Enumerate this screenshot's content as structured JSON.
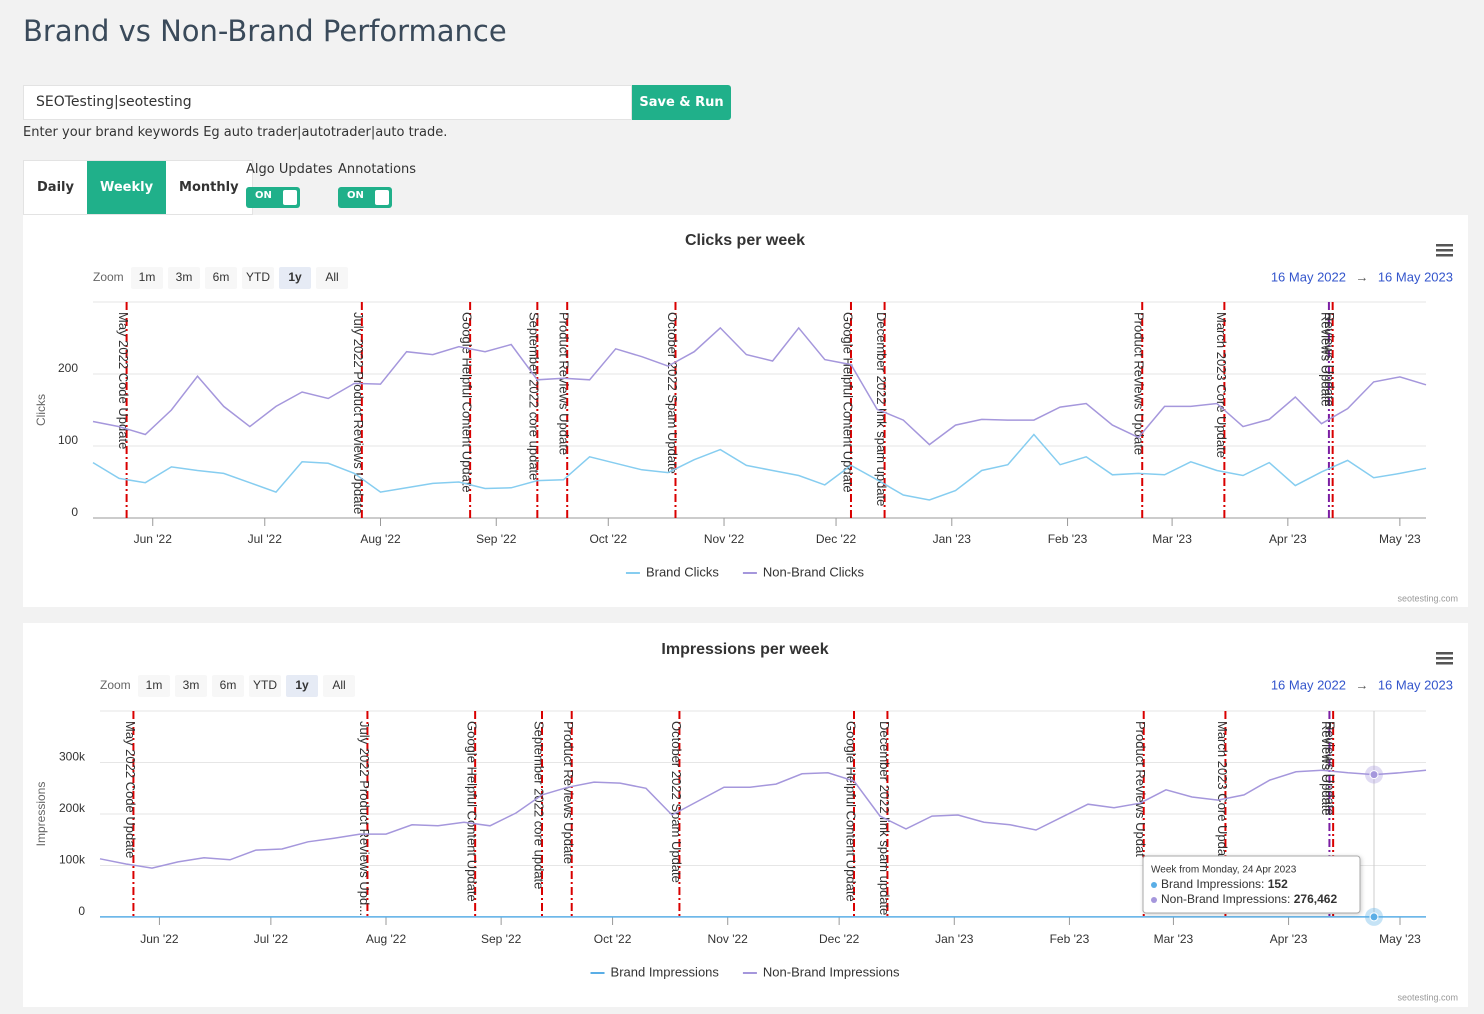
{
  "header": {
    "title": "Brand vs Non-Brand Performance"
  },
  "brand_form": {
    "input_value": "SEOTesting|seotesting",
    "button": "Save & Run",
    "help": "Enter your brand keywords Eg auto trader|autotrader|auto trade."
  },
  "tabs": [
    {
      "label": "Daily"
    },
    {
      "label": "Weekly",
      "selected": true
    },
    {
      "label": "Monthly"
    }
  ],
  "toggles": [
    {
      "label": "Algo Updates",
      "state": "ON"
    },
    {
      "label": "Annotations",
      "state": "ON"
    }
  ],
  "chart_data": [
    {
      "type": "line",
      "title": "Clicks per week",
      "y_label": "Clicks",
      "zoom": {
        "label": "Zoom",
        "buttons": [
          {
            "label": "1m"
          },
          {
            "label": "3m"
          },
          {
            "label": "6m"
          },
          {
            "label": "YTD"
          },
          {
            "label": "1y",
            "selected": true
          },
          {
            "label": "All"
          }
        ]
      },
      "range": {
        "from": "16 May 2022",
        "arrow": "→",
        "to": "16 May 2023"
      },
      "x": [
        "2022-05-16",
        "2022-05-23",
        "2022-05-30",
        "2022-06-06",
        "2022-06-13",
        "2022-06-20",
        "2022-06-27",
        "2022-07-04",
        "2022-07-11",
        "2022-07-18",
        "2022-07-25",
        "2022-08-01",
        "2022-08-08",
        "2022-08-15",
        "2022-08-22",
        "2022-08-29",
        "2022-09-05",
        "2022-09-12",
        "2022-09-19",
        "2022-09-26",
        "2022-10-03",
        "2022-10-10",
        "2022-10-17",
        "2022-10-24",
        "2022-10-31",
        "2022-11-07",
        "2022-11-14",
        "2022-11-21",
        "2022-11-28",
        "2022-12-05",
        "2022-12-12",
        "2022-12-19",
        "2022-12-26",
        "2023-01-02",
        "2023-01-09",
        "2023-01-16",
        "2023-01-23",
        "2023-01-30",
        "2023-02-06",
        "2023-02-13",
        "2023-02-20",
        "2023-02-27",
        "2023-03-06",
        "2023-03-13",
        "2023-03-20",
        "2023-03-27",
        "2023-04-03",
        "2023-04-10",
        "2023-04-17",
        "2023-04-24",
        "2023-05-01",
        "2023-05-08"
      ],
      "xlim": [
        "2022-05-16",
        "2023-05-08"
      ],
      "xticks": [
        {
          "value": "2022-06-01",
          "label": "Jun '22"
        },
        {
          "value": "2022-07-01",
          "label": "Jul '22"
        },
        {
          "value": "2022-08-01",
          "label": "Aug '22"
        },
        {
          "value": "2022-09-01",
          "label": "Sep '22"
        },
        {
          "value": "2022-10-01",
          "label": "Oct '22"
        },
        {
          "value": "2022-11-01",
          "label": "Nov '22"
        },
        {
          "value": "2022-12-01",
          "label": "Dec '22"
        },
        {
          "value": "2023-01-01",
          "label": "Jan '23"
        },
        {
          "value": "2023-02-01",
          "label": "Feb '23"
        },
        {
          "value": "2023-03-01",
          "label": "Mar '23"
        },
        {
          "value": "2023-04-01",
          "label": "Apr '23"
        },
        {
          "value": "2023-05-01",
          "label": "May '23"
        }
      ],
      "ylim": [
        0,
        300
      ],
      "yticks": [
        0,
        100,
        200
      ],
      "grid": true,
      "series": [
        {
          "name": "Brand Clicks",
          "color": "#86cdf0",
          "values": [
            77,
            55,
            49,
            71,
            66,
            62,
            49,
            36,
            78,
            76,
            62,
            36,
            42,
            48,
            50,
            41,
            42,
            52,
            53,
            85,
            76,
            67,
            63,
            81,
            95,
            73,
            66,
            59,
            46,
            73,
            53,
            32,
            25,
            38,
            66,
            74,
            116,
            74,
            85,
            60,
            62,
            60,
            78,
            66,
            59,
            77,
            45,
            64,
            80,
            56,
            62,
            69
          ]
        },
        {
          "name": "Non-Brand Clicks",
          "color": "#a597dc",
          "values": [
            134,
            127,
            116,
            150,
            197,
            155,
            127,
            155,
            175,
            166,
            187,
            186,
            231,
            227,
            238,
            231,
            241,
            192,
            194,
            192,
            235,
            224,
            211,
            231,
            264,
            227,
            218,
            264,
            220,
            213,
            151,
            136,
            102,
            129,
            137,
            136,
            136,
            154,
            159,
            129,
            112,
            155,
            155,
            159,
            127,
            137,
            168,
            131,
            152,
            189,
            196,
            185
          ]
        }
      ],
      "annotations": [
        {
          "x": "2022-05-25",
          "label": "May 2022 Code Update",
          "color": "#d90000"
        },
        {
          "x": "2022-07-27",
          "label": "July 2022 Product Reviews Update",
          "color": "#d90000"
        },
        {
          "x": "2022-08-25",
          "label": "Google Helpful Content Update",
          "color": "#d90000"
        },
        {
          "x": "2022-09-12",
          "label": "September 2022 core update",
          "color": "#d90000"
        },
        {
          "x": "2022-09-20",
          "label": "Product Reviews Update",
          "color": "#d90000"
        },
        {
          "x": "2022-10-19",
          "label": "October 2022 Spam Update",
          "color": "#d90000"
        },
        {
          "x": "2022-12-05",
          "label": "Google Helpful Content Update",
          "color": "#d90000"
        },
        {
          "x": "2022-12-14",
          "label": "December 2022 link spam update",
          "color": "#d90000"
        },
        {
          "x": "2023-02-21",
          "label": "Product Reviews Update",
          "color": "#d90000"
        },
        {
          "x": "2023-03-15",
          "label": "March 2023 Core Update",
          "color": "#d90000"
        },
        {
          "x": "2023-04-12",
          "label": "Reviews Update",
          "color": "#7b1fa2"
        },
        {
          "x": "2023-04-13",
          "label": "Reviews Update",
          "color": "#d90000"
        }
      ],
      "credits": "seotesting.com"
    },
    {
      "type": "line",
      "title": "Impressions per week",
      "y_label": "Impressions",
      "zoom": {
        "label": "Zoom",
        "buttons": [
          {
            "label": "1m"
          },
          {
            "label": "3m"
          },
          {
            "label": "6m"
          },
          {
            "label": "YTD"
          },
          {
            "label": "1y",
            "selected": true
          },
          {
            "label": "All"
          }
        ]
      },
      "range": {
        "from": "16 May 2022",
        "arrow": "→",
        "to": "16 May 2023"
      },
      "x": [
        "2022-05-16",
        "2022-05-23",
        "2022-05-30",
        "2022-06-06",
        "2022-06-13",
        "2022-06-20",
        "2022-06-27",
        "2022-07-04",
        "2022-07-11",
        "2022-07-18",
        "2022-07-25",
        "2022-08-01",
        "2022-08-08",
        "2022-08-15",
        "2022-08-22",
        "2022-08-29",
        "2022-09-05",
        "2022-09-12",
        "2022-09-19",
        "2022-09-26",
        "2022-10-03",
        "2022-10-10",
        "2022-10-17",
        "2022-10-24",
        "2022-10-31",
        "2022-11-07",
        "2022-11-14",
        "2022-11-21",
        "2022-11-28",
        "2022-12-05",
        "2022-12-12",
        "2022-12-19",
        "2022-12-26",
        "2023-01-02",
        "2023-01-09",
        "2023-01-16",
        "2023-01-23",
        "2023-01-30",
        "2023-02-06",
        "2023-02-13",
        "2023-02-20",
        "2023-02-27",
        "2023-03-06",
        "2023-03-13",
        "2023-03-20",
        "2023-03-27",
        "2023-04-03",
        "2023-04-10",
        "2023-04-17",
        "2023-04-24",
        "2023-05-01",
        "2023-05-08"
      ],
      "xlim": [
        "2022-05-16",
        "2023-05-08"
      ],
      "xticks": [
        {
          "value": "2022-06-01",
          "label": "Jun '22"
        },
        {
          "value": "2022-07-01",
          "label": "Jul '22"
        },
        {
          "value": "2022-08-01",
          "label": "Aug '22"
        },
        {
          "value": "2022-09-01",
          "label": "Sep '22"
        },
        {
          "value": "2022-10-01",
          "label": "Oct '22"
        },
        {
          "value": "2022-11-01",
          "label": "Nov '22"
        },
        {
          "value": "2022-12-01",
          "label": "Dec '22"
        },
        {
          "value": "2023-01-01",
          "label": "Jan '23"
        },
        {
          "value": "2023-02-01",
          "label": "Feb '23"
        },
        {
          "value": "2023-03-01",
          "label": "Mar '23"
        },
        {
          "value": "2023-04-01",
          "label": "Apr '23"
        },
        {
          "value": "2023-05-01",
          "label": "May '23"
        }
      ],
      "ylim": [
        0,
        400000
      ],
      "yticks": [
        0,
        {
          "value": 100000,
          "label": "100k"
        },
        {
          "value": 200000,
          "label": "200k"
        },
        {
          "value": 300000,
          "label": "300k"
        }
      ],
      "grid": true,
      "series": [
        {
          "name": "Brand Impressions",
          "color": "#5aaee6",
          "values": [
            150,
            150,
            150,
            150,
            150,
            150,
            150,
            150,
            150,
            150,
            150,
            150,
            150,
            150,
            150,
            150,
            150,
            150,
            150,
            150,
            150,
            150,
            150,
            150,
            150,
            150,
            150,
            150,
            150,
            150,
            150,
            150,
            150,
            150,
            150,
            150,
            150,
            150,
            150,
            150,
            150,
            150,
            150,
            150,
            150,
            150,
            150,
            150,
            150,
            152,
            150,
            150
          ]
        },
        {
          "name": "Non-Brand Impressions",
          "color": "#a597dc",
          "values": [
            113000,
            103000,
            95000,
            107000,
            115000,
            111000,
            130000,
            132000,
            146000,
            153000,
            161000,
            161000,
            179000,
            177000,
            184000,
            177000,
            202000,
            237000,
            252000,
            262000,
            260000,
            250000,
            198000,
            225000,
            252000,
            252000,
            258000,
            278000,
            280000,
            264000,
            196000,
            171000,
            196000,
            198000,
            184000,
            179000,
            169000,
            194000,
            219000,
            212000,
            221000,
            247000,
            233000,
            227000,
            237000,
            266000,
            282000,
            285000,
            280000,
            276462,
            280000,
            285000
          ]
        }
      ],
      "annotations": [
        {
          "x": "2022-05-25",
          "label": "May 2022 Code Update",
          "color": "#d90000"
        },
        {
          "x": "2022-07-27",
          "label": "July 2022 Product Reviews Upd...",
          "color": "#d90000"
        },
        {
          "x": "2022-08-25",
          "label": "Google Helpful Content Update",
          "color": "#d90000"
        },
        {
          "x": "2022-09-12",
          "label": "September 2022 core update",
          "color": "#d90000"
        },
        {
          "x": "2022-09-20",
          "label": "Product Reviews Update",
          "color": "#d90000"
        },
        {
          "x": "2022-10-19",
          "label": "October 2022 Spam Update",
          "color": "#d90000"
        },
        {
          "x": "2022-12-05",
          "label": "Google Helpful Content Update",
          "color": "#d90000"
        },
        {
          "x": "2022-12-14",
          "label": "December 2022 link spam update",
          "color": "#d90000"
        },
        {
          "x": "2023-02-21",
          "label": "Product Reviews Updat",
          "color": "#d90000"
        },
        {
          "x": "2023-03-15",
          "label": "March 2023 Core Update",
          "color": "#d90000"
        },
        {
          "x": "2023-04-12",
          "label": "Reviews Update",
          "color": "#7b1fa2"
        },
        {
          "x": "2023-04-13",
          "label": "Reviews Update",
          "color": "#d90000"
        }
      ],
      "tooltip": {
        "x": "2023-04-24",
        "title": "Week from Monday, 24 Apr 2023",
        "rows": [
          {
            "label": "Brand Impressions: ",
            "value": "152"
          },
          {
            "label": "Non-Brand Impressions: ",
            "value": "276,462"
          }
        ]
      },
      "credits": "seotesting.com"
    }
  ]
}
